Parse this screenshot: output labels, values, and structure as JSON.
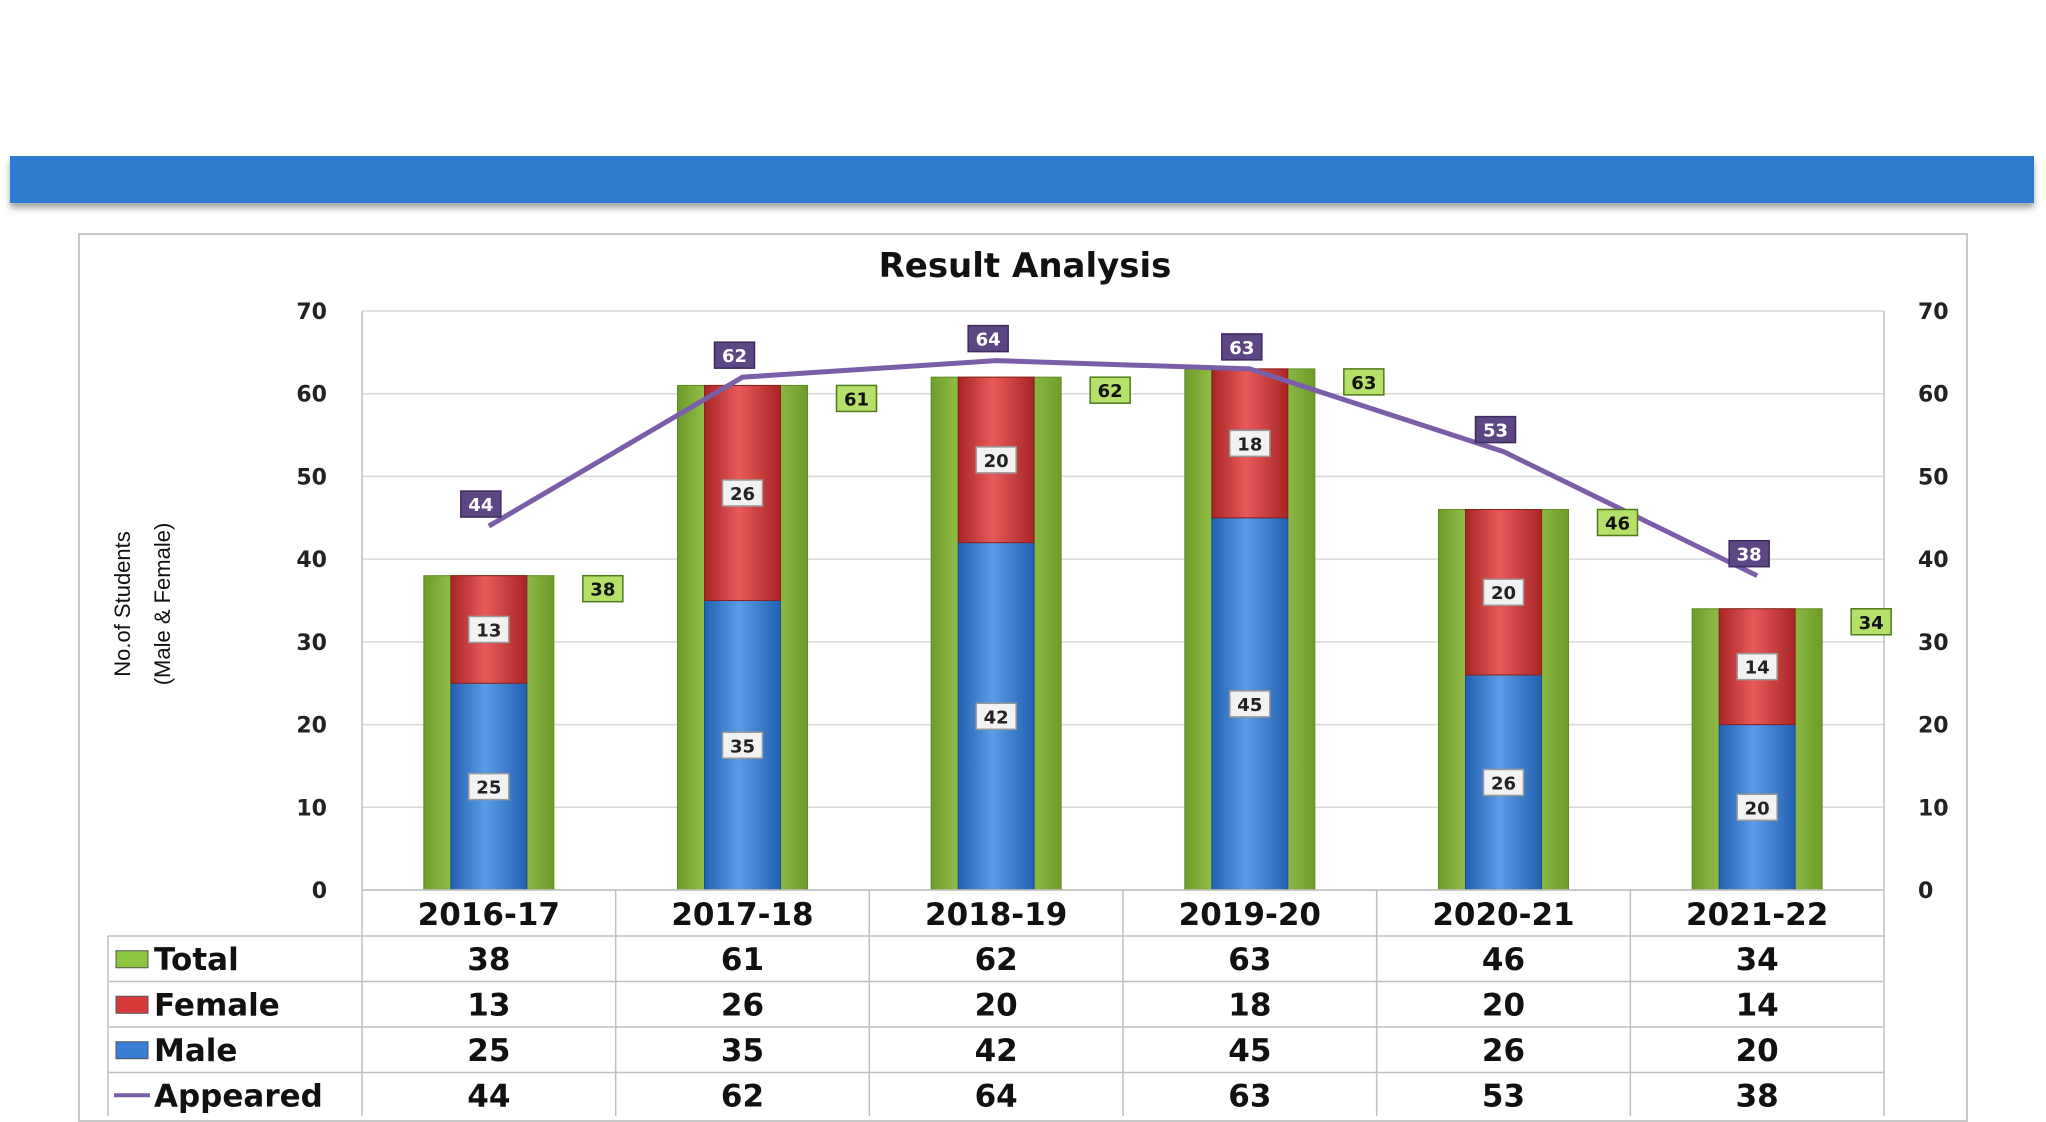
{
  "chart_data": {
    "type": "bar",
    "stacked": true,
    "title": "Result Analysis",
    "ylabel_line1": "No.of Students",
    "ylabel_line2": "(Male & Female)",
    "categories": [
      "2016-17",
      "2017-18",
      "2018-19",
      "2019-20",
      "2020-21",
      "2021-22"
    ],
    "series": [
      {
        "name": "Total",
        "type": "bar",
        "color": "#8dc63f",
        "values": [
          38,
          61,
          62,
          63,
          46,
          34
        ]
      },
      {
        "name": "Female",
        "type": "bar",
        "color": "#d73a3a",
        "values": [
          13,
          26,
          20,
          18,
          20,
          14
        ]
      },
      {
        "name": "Male",
        "type": "bar",
        "color": "#3a7fd6",
        "values": [
          25,
          35,
          42,
          45,
          26,
          20
        ]
      },
      {
        "name": "Appeared",
        "type": "line",
        "color": "#7b5ea8",
        "values": [
          44,
          62,
          64,
          63,
          53,
          38
        ]
      }
    ],
    "ylim": [
      0,
      70
    ],
    "y_ticks": [
      "0",
      "10",
      "20",
      "30",
      "40",
      "50",
      "60",
      "70"
    ],
    "grid": true,
    "legend": "data-table-below"
  }
}
